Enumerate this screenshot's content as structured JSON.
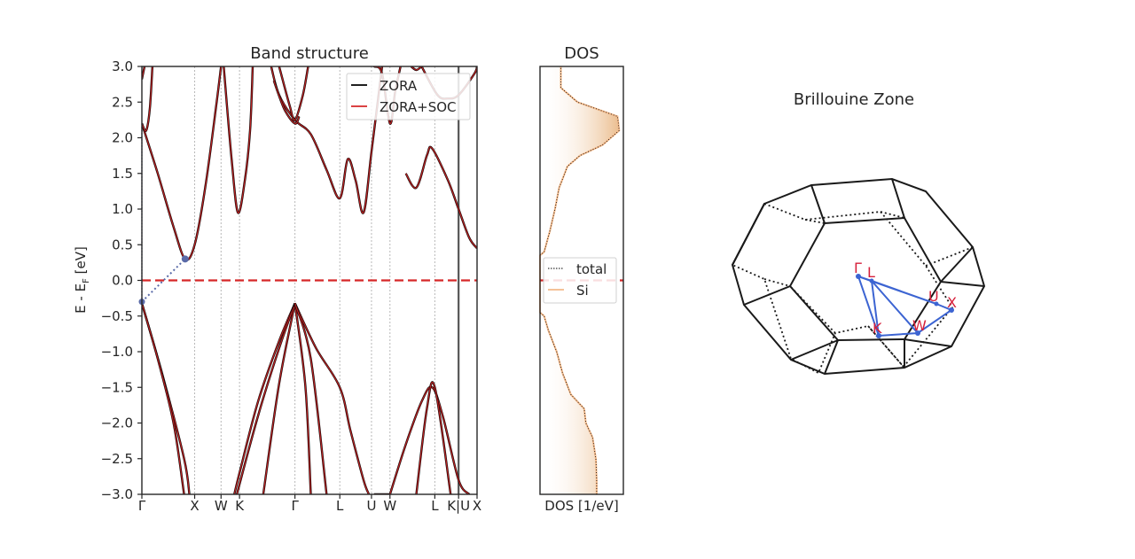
{
  "chart_data": [
    {
      "type": "line",
      "title": "Band structure",
      "xlabel": "",
      "ylabel": "E - E",
      "ylabel_sub": "F",
      "ylabel_unit": " [eV]",
      "ylim": [
        -3.0,
        3.0
      ],
      "yticks": [
        "3.0",
        "2.5",
        "2.0",
        "1.5",
        "1.0",
        "0.5",
        "0.0",
        "−0.5",
        "−1.0",
        "−1.5",
        "−2.0",
        "−2.5",
        "−3.0"
      ],
      "ytick_values": [
        3.0,
        2.5,
        2.0,
        1.5,
        1.0,
        0.5,
        0.0,
        -0.5,
        -1.0,
        -1.5,
        -2.0,
        -2.5,
        -3.0
      ],
      "kpath_labels": [
        "Γ",
        "X",
        "W",
        "K",
        "Γ",
        "L",
        "U",
        "W",
        "L",
        "K|U",
        "X"
      ],
      "kpath_x": [
        0,
        1.0,
        1.5,
        1.85,
        2.9,
        3.75,
        4.35,
        4.7,
        5.55,
        6.0,
        6.35
      ],
      "fermi_level": 0.0,
      "grid": "vertical dotted at high-symmetry points",
      "legend": {
        "placement": "top-right",
        "entries": [
          "ZORA",
          "ZORA+SOC"
        ]
      },
      "colors": {
        "ZORA": "#000000",
        "ZORA+SOC": "#d62728",
        "fermi": "#d62728",
        "gap": "#5a6aa8"
      },
      "gap": {
        "vbm": [
          0,
          -0.3
        ],
        "cbm": [
          0.82,
          0.3
        ]
      },
      "series": [
        {
          "name": "ZORA",
          "bands": [
            [
              [
                0,
                -0.32
              ],
              [
                0.4,
                -1.35
              ],
              [
                0.8,
                -2.5
              ],
              [
                0.9,
                -3.0
              ]
            ],
            [
              [
                0,
                -0.32
              ],
              [
                0.3,
                -1.1
              ],
              [
                0.6,
                -2.0
              ],
              [
                0.8,
                -3.0
              ]
            ],
            [
              [
                0,
                2.2
              ],
              [
                0.3,
                1.5
              ],
              [
                0.6,
                0.75
              ],
              [
                0.82,
                0.3
              ],
              [
                1.0,
                0.5
              ],
              [
                1.2,
                1.3
              ],
              [
                1.4,
                2.4
              ],
              [
                1.5,
                3.0
              ]
            ],
            [
              [
                0,
                2.2
              ],
              [
                0.08,
                2.1
              ],
              [
                0.15,
                2.4
              ],
              [
                0.2,
                3.0
              ]
            ],
            [
              [
                0,
                2.82
              ],
              [
                0.05,
                3.0
              ]
            ],
            [
              [
                1.55,
                3.0
              ],
              [
                1.7,
                1.7
              ],
              [
                1.82,
                0.95
              ],
              [
                1.95,
                1.4
              ],
              [
                2.05,
                2.1
              ],
              [
                2.1,
                3.0
              ]
            ],
            [
              [
                1.75,
                -3.0
              ],
              [
                1.85,
                -2.7
              ],
              [
                2.2,
                -1.7
              ],
              [
                2.6,
                -0.85
              ],
              [
                2.9,
                -0.32
              ]
            ],
            [
              [
                1.8,
                -3.0
              ],
              [
                2.2,
                -1.9
              ],
              [
                2.6,
                -0.95
              ],
              [
                2.9,
                -0.32
              ]
            ],
            [
              [
                2.3,
                -3.0
              ],
              [
                2.6,
                -1.45
              ],
              [
                2.9,
                -0.32
              ]
            ],
            [
              [
                2.9,
                -0.32
              ],
              [
                3.3,
                -0.95
              ],
              [
                3.75,
                -1.5
              ],
              [
                3.95,
                -2.1
              ],
              [
                4.2,
                -2.8
              ],
              [
                4.3,
                -3.0
              ]
            ],
            [
              [
                2.9,
                -0.32
              ],
              [
                3.1,
                -1.5
              ],
              [
                3.2,
                -3.0
              ]
            ],
            [
              [
                2.9,
                -0.32
              ],
              [
                3.2,
                -1.1
              ],
              [
                3.5,
                -3.0
              ]
            ],
            [
              [
                2.45,
                3.0
              ],
              [
                2.6,
                2.6
              ],
              [
                2.9,
                2.25
              ],
              [
                3.2,
                2.05
              ],
              [
                3.5,
                1.55
              ],
              [
                3.75,
                1.15
              ],
              [
                3.9,
                1.7
              ],
              [
                4.05,
                1.4
              ],
              [
                4.2,
                0.95
              ],
              [
                4.35,
                1.8
              ],
              [
                4.55,
                3.0
              ]
            ],
            [
              [
                2.6,
                3.0
              ],
              [
                2.8,
                2.45
              ],
              [
                2.9,
                2.25
              ],
              [
                3.05,
                2.6
              ],
              [
                3.15,
                3.0
              ]
            ],
            [
              [
                2.5,
                2.8
              ],
              [
                2.7,
                2.4
              ],
              [
                2.9,
                2.2
              ],
              [
                2.98,
                2.3
              ]
            ],
            [
              [
                4.4,
                -3.0
              ],
              [
                4.7,
                -3.0
              ]
            ],
            [
              [
                4.7,
                -3.0
              ],
              [
                5.0,
                -2.3
              ],
              [
                5.3,
                -1.7
              ],
              [
                5.5,
                -1.5
              ],
              [
                5.7,
                -1.9
              ],
              [
                6.0,
                -2.8
              ],
              [
                6.2,
                -3.0
              ]
            ],
            [
              [
                5.2,
                -3.0
              ],
              [
                5.4,
                -1.8
              ],
              [
                5.55,
                -1.5
              ],
              [
                5.85,
                -3.0
              ]
            ],
            [
              [
                5.0,
                1.5
              ],
              [
                5.2,
                1.3
              ],
              [
                5.4,
                1.75
              ],
              [
                5.5,
                1.85
              ],
              [
                5.8,
                1.4
              ],
              [
                6.0,
                1.0
              ],
              [
                6.2,
                0.6
              ],
              [
                6.35,
                0.45
              ]
            ],
            [
              [
                5.3,
                3.0
              ],
              [
                5.6,
                2.6
              ],
              [
                5.8,
                2.55
              ],
              [
                6.0,
                2.6
              ],
              [
                6.3,
                2.9
              ],
              [
                6.35,
                3.0
              ]
            ],
            [
              [
                4.4,
                3.0
              ],
              [
                4.55,
                2.9
              ],
              [
                4.7,
                2.2
              ],
              [
                4.8,
                2.65
              ],
              [
                4.9,
                3.0
              ]
            ],
            [
              [
                5.1,
                3.0
              ],
              [
                5.2,
                2.95
              ],
              [
                5.3,
                3.0
              ]
            ]
          ]
        },
        {
          "name": "ZORA+SOC"
        }
      ]
    },
    {
      "type": "area",
      "title": "DOS",
      "xlabel": "DOS [1/eV]",
      "ylim": [
        -3.0,
        3.0
      ],
      "legend": {
        "placement": "center",
        "entries": [
          "total",
          "Si"
        ]
      },
      "colors": {
        "total": "#000000",
        "Si": "#f3b98a",
        "fill": "#e9b682"
      },
      "series": [
        {
          "name": "total",
          "e": [
            -3.0,
            -2.8,
            -2.5,
            -2.2,
            -2.0,
            -1.8,
            -1.6,
            -1.3,
            -1.0,
            -0.7,
            -0.5,
            -0.45,
            0.0,
            0.35,
            0.4,
            0.7,
            1.0,
            1.3,
            1.6,
            1.75,
            1.9,
            2.1,
            2.3,
            2.5,
            2.7,
            2.9,
            3.0
          ],
          "dos": [
            0.68,
            0.68,
            0.67,
            0.63,
            0.55,
            0.53,
            0.37,
            0.27,
            0.2,
            0.1,
            0.05,
            0.0,
            0.0,
            0.0,
            0.05,
            0.12,
            0.18,
            0.23,
            0.33,
            0.48,
            0.75,
            0.95,
            0.93,
            0.45,
            0.25,
            0.25,
            0.25
          ]
        },
        {
          "name": "Si"
        }
      ]
    }
  ],
  "brillouin": {
    "title": "Brillouine Zone",
    "labels": [
      "Γ",
      "L",
      "U",
      "X",
      "K",
      "W"
    ],
    "colors": {
      "edges": "#1a1a1a",
      "path": "#3c64d2",
      "labels": "#d61f3a"
    }
  }
}
